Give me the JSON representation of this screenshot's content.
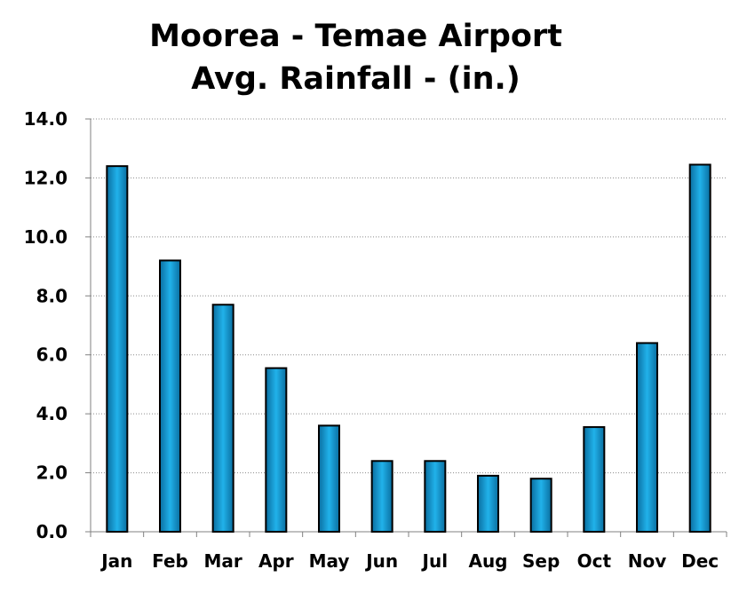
{
  "chart_data": {
    "type": "bar",
    "title": [
      "Moorea - Temae Airport",
      "Avg. Rainfall - (in.)"
    ],
    "xlabel": "",
    "ylabel": "",
    "categories": [
      "Jan",
      "Feb",
      "Mar",
      "Apr",
      "May",
      "Jun",
      "Jul",
      "Aug",
      "Sep",
      "Oct",
      "Nov",
      "Dec"
    ],
    "values": [
      12.4,
      9.2,
      7.7,
      5.55,
      3.6,
      2.4,
      2.4,
      1.9,
      1.8,
      3.55,
      6.4,
      12.45
    ],
    "ylim": [
      0,
      14
    ],
    "yticks": [
      "0.0",
      "2.0",
      "4.0",
      "6.0",
      "8.0",
      "10.0",
      "12.0",
      "14.0"
    ],
    "grid": true,
    "legend": "none",
    "colors": {
      "bar_fill_dark": "#0a6ea0",
      "bar_fill_light": "#21b2ea",
      "bar_stroke": "#000000",
      "grid": "#8c8c8c",
      "axis": "#808080"
    }
  }
}
